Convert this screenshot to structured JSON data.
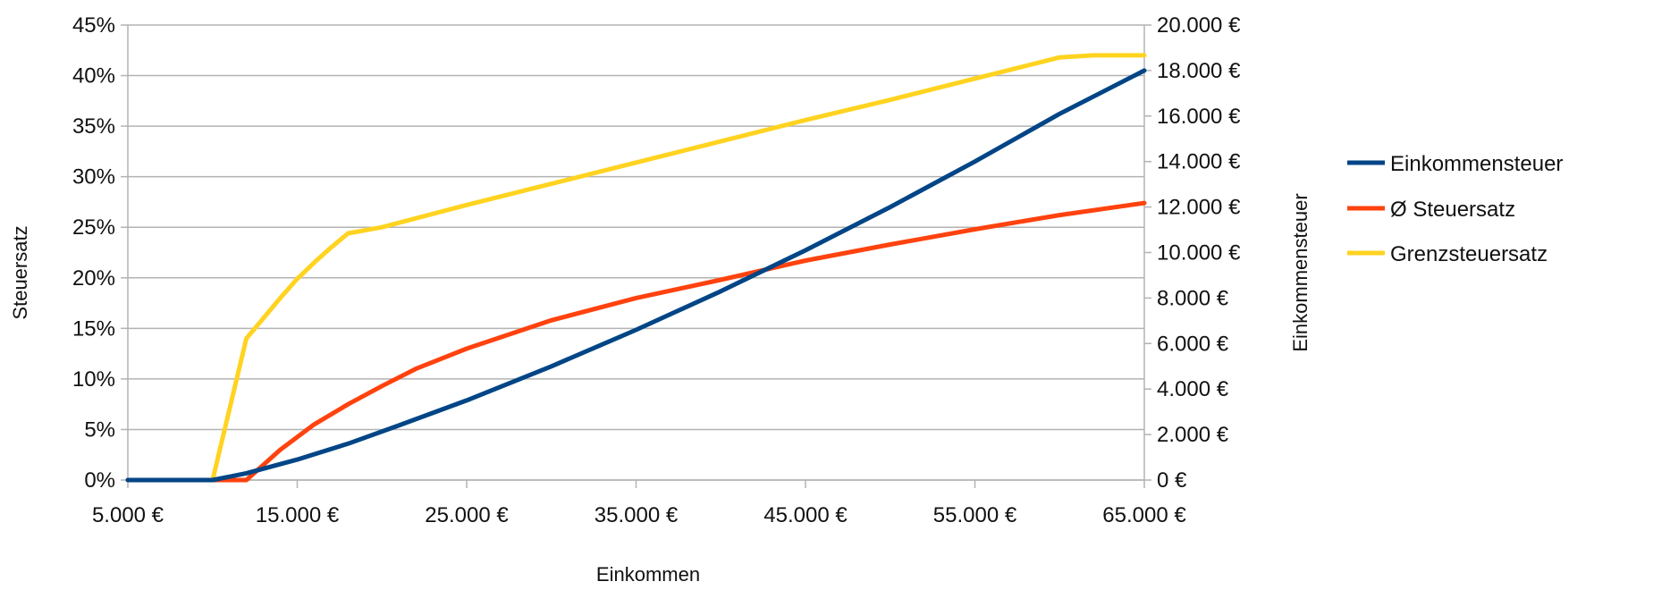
{
  "chart_data": {
    "type": "line",
    "title": "",
    "xlabel": "Einkommen",
    "ylabel": "Steuersatz",
    "y2label": "Einkommensteuer",
    "xlim": [
      5000,
      65000
    ],
    "ylim": [
      0,
      45
    ],
    "y2lim": [
      0,
      20000
    ],
    "x_ticks": [
      "5.000 €",
      "15.000 €",
      "25.000 €",
      "35.000 €",
      "45.000 €",
      "55.000 €",
      "65.000 €"
    ],
    "y_ticks": [
      "0%",
      "5%",
      "10%",
      "15%",
      "20%",
      "25%",
      "30%",
      "35%",
      "40%",
      "45%"
    ],
    "y2_ticks": [
      "0 €",
      "2.000 €",
      "4.000 €",
      "6.000 €",
      "8.000 €",
      "10.000 €",
      "12.000 €",
      "14.000 €",
      "16.000 €",
      "18.000 €",
      "20.000 €"
    ],
    "grid": true,
    "legend_position": "right",
    "series": [
      {
        "name": "Einkommensteuer",
        "axis": "right",
        "color": "#004586",
        "x": [
          5000,
          10000,
          12000,
          15000,
          18000,
          21000,
          25000,
          30000,
          35000,
          40000,
          45000,
          50000,
          55000,
          60000,
          65000
        ],
        "y": [
          0,
          0,
          300,
          900,
          1600,
          2400,
          3500,
          5000,
          6600,
          8300,
          10100,
          12000,
          14000,
          16100,
          18000
        ]
      },
      {
        "name": "Ø Steuersatz",
        "axis": "left",
        "color": "#ff420e",
        "x": [
          5000,
          10000,
          12000,
          14000,
          16000,
          18000,
          20000,
          22000,
          25000,
          30000,
          35000,
          40000,
          45000,
          50000,
          55000,
          60000,
          65000
        ],
        "y": [
          0,
          0,
          0,
          3,
          5.5,
          7.5,
          9.3,
          11,
          13,
          15.8,
          18,
          19.8,
          21.7,
          23.3,
          24.8,
          26.2,
          27.4
        ]
      },
      {
        "name": "Grenzsteuersatz",
        "axis": "left",
        "color": "#ffd320",
        "x": [
          5000,
          10000,
          12000,
          13000,
          14000,
          15000,
          16000,
          17000,
          18000,
          20000,
          25000,
          30000,
          35000,
          40000,
          45000,
          50000,
          55000,
          60000,
          62000,
          65000
        ],
        "y": [
          0,
          0,
          14,
          16,
          18,
          19.9,
          21.5,
          23,
          24.4,
          25,
          27.2,
          29.3,
          31.4,
          33.5,
          35.6,
          37.6,
          39.7,
          41.8,
          42,
          42
        ]
      }
    ]
  }
}
